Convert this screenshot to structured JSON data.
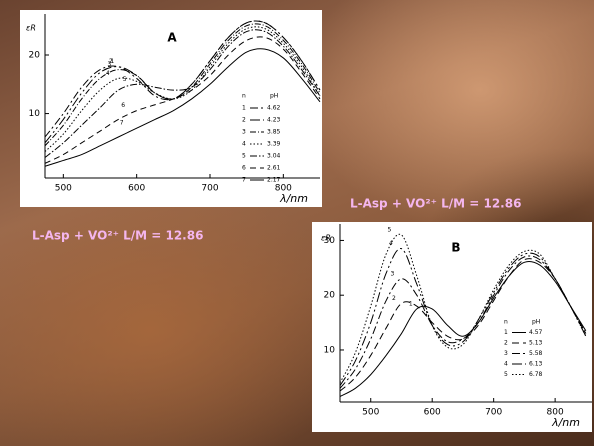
{
  "slide": {
    "captions": [
      "L-Asp + VO²⁺  L/M = 12.86",
      "L-Asp + VO²⁺  L/M = 12.86"
    ]
  },
  "chart_data": [
    {
      "type": "line",
      "title": "A",
      "y_label": "εR",
      "x_label": "λ/nm",
      "legend_header": [
        "n",
        "pH"
      ],
      "x": [
        475,
        500,
        525,
        550,
        575,
        600,
        625,
        650,
        675,
        700,
        725,
        750,
        775,
        800,
        825,
        850
      ],
      "xlim": [
        475,
        850
      ],
      "xticks": [
        500,
        600,
        700,
        800
      ],
      "ylim": [
        -1,
        27
      ],
      "yticks": [
        10,
        20
      ],
      "series": [
        {
          "name": "1",
          "pH": 4.62,
          "color": "#000",
          "dash": "8 3 2 3",
          "values": [
            6,
            10,
            14.5,
            17.5,
            18,
            16,
            13,
            12.5,
            15,
            19,
            23,
            25.5,
            25.5,
            23,
            19,
            14
          ]
        },
        {
          "name": "2",
          "pH": 4.23,
          "color": "#000",
          "dash": "10 3 2 3 2 3",
          "values": [
            5,
            9,
            13.5,
            17,
            18,
            16.5,
            13.5,
            12.5,
            15,
            19,
            23,
            25.5,
            25.5,
            23,
            19,
            14
          ]
        },
        {
          "name": "3",
          "pH": 3.85,
          "color": "#000",
          "dash": "6 2 1 2",
          "values": [
            4.5,
            8,
            12.5,
            16,
            17.5,
            16.5,
            13.5,
            12.5,
            14.5,
            18.5,
            22.5,
            25,
            25,
            22.5,
            18.5,
            13.5
          ]
        },
        {
          "name": "4",
          "pH": 3.39,
          "color": "#000",
          "dash": "1.5 2",
          "values": [
            3.5,
            6.5,
            10.5,
            14,
            16,
            15.5,
            13.5,
            12.5,
            14,
            18,
            22,
            24.5,
            24.5,
            22,
            18,
            13
          ]
        },
        {
          "name": "5",
          "pH": 3.04,
          "color": "#000",
          "dash": "7 2 1.5 2",
          "values": [
            2.5,
            5,
            8,
            11,
            14,
            15,
            14.5,
            14,
            14.5,
            17.5,
            21.5,
            24,
            24,
            21.5,
            17.5,
            13
          ]
        },
        {
          "name": "6",
          "pH": 2.61,
          "color": "#000",
          "dash": "6 4",
          "values": [
            1.5,
            3,
            5,
            7,
            9,
            10.5,
            11.5,
            12.5,
            14,
            16.5,
            20,
            22.5,
            23,
            21,
            17,
            12.5
          ]
        },
        {
          "name": "7",
          "pH": 2.17,
          "color": "#000",
          "dash": "none",
          "values": [
            1,
            2,
            3,
            4.5,
            6,
            7.5,
            9,
            10.5,
            12.5,
            15,
            18,
            20.5,
            21,
            19.5,
            16,
            12
          ]
        }
      ]
    },
    {
      "type": "line",
      "title": "B",
      "y_label": "εR",
      "x_label": "λ/nm",
      "legend_header": [
        "n",
        "pH"
      ],
      "x": [
        450,
        475,
        500,
        525,
        550,
        575,
        600,
        625,
        650,
        675,
        700,
        725,
        750,
        775,
        800,
        825,
        850
      ],
      "xlim": [
        450,
        860
      ],
      "xticks": [
        500,
        600,
        700,
        800
      ],
      "ylim": [
        0.5,
        33
      ],
      "yticks": [
        10,
        20,
        30
      ],
      "series": [
        {
          "name": "1",
          "pH": 4.57,
          "color": "#000",
          "dash": "none",
          "values": [
            1.5,
            3,
            5.5,
            9,
            13,
            17.5,
            17.5,
            14.5,
            12.5,
            15,
            19.5,
            23.5,
            26,
            25.5,
            22.5,
            18,
            13.5
          ]
        },
        {
          "name": "2",
          "pH": 5.13,
          "color": "#000",
          "dash": "7 4",
          "values": [
            2.5,
            5,
            9,
            14,
            18.5,
            18,
            15,
            12.5,
            12,
            14.5,
            19,
            23.5,
            26.5,
            26,
            23,
            18,
            13
          ]
        },
        {
          "name": "3",
          "pH": 5.58,
          "color": "#000",
          "dash": "8 3 2 3",
          "values": [
            3,
            6.5,
            12,
            19,
            23,
            20,
            14.5,
            11.5,
            12,
            15,
            20,
            24.5,
            27,
            26.5,
            23,
            18,
            13
          ]
        },
        {
          "name": "4",
          "pH": 6.13,
          "color": "#000",
          "dash": "10 3 2 3 2 3",
          "values": [
            3.5,
            8,
            15,
            24,
            28.5,
            22,
            14.5,
            11,
            11.5,
            15.5,
            20.5,
            25,
            27.5,
            27,
            23,
            18,
            12.5
          ]
        },
        {
          "name": "5",
          "pH": 6.78,
          "color": "#000",
          "dash": "1.5 2",
          "values": [
            4,
            9.5,
            18,
            27.5,
            31,
            23.5,
            14.5,
            10.5,
            11,
            15.5,
            21,
            25.5,
            28,
            27.5,
            23,
            18,
            12.5
          ]
        }
      ]
    }
  ]
}
